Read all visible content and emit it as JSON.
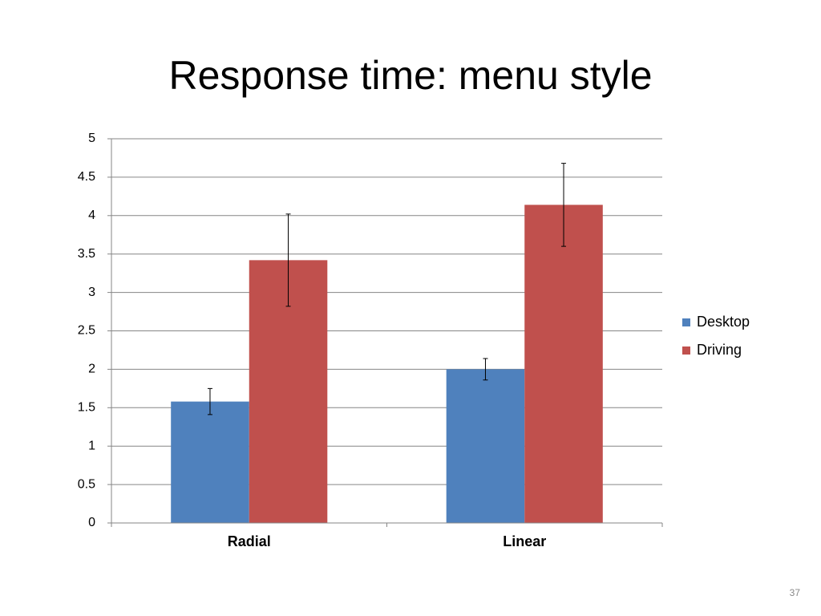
{
  "chart_data": {
    "type": "bar",
    "title": "Response time: menu style",
    "categories": [
      "Radial",
      "Linear"
    ],
    "series": [
      {
        "name": "Desktop",
        "color": "#4f81bd",
        "values": [
          1.58,
          2.0
        ],
        "errors": [
          0.17,
          0.14
        ]
      },
      {
        "name": "Driving",
        "color": "#c0504d",
        "values": [
          3.42,
          4.14
        ],
        "errors": [
          0.6,
          0.54
        ]
      }
    ],
    "ylim": [
      0,
      5
    ],
    "yticks": [
      0,
      0.5,
      1,
      1.5,
      2,
      2.5,
      3,
      3.5,
      4,
      4.5,
      5
    ],
    "grid": true,
    "legend": "right"
  },
  "slide_number": "37"
}
